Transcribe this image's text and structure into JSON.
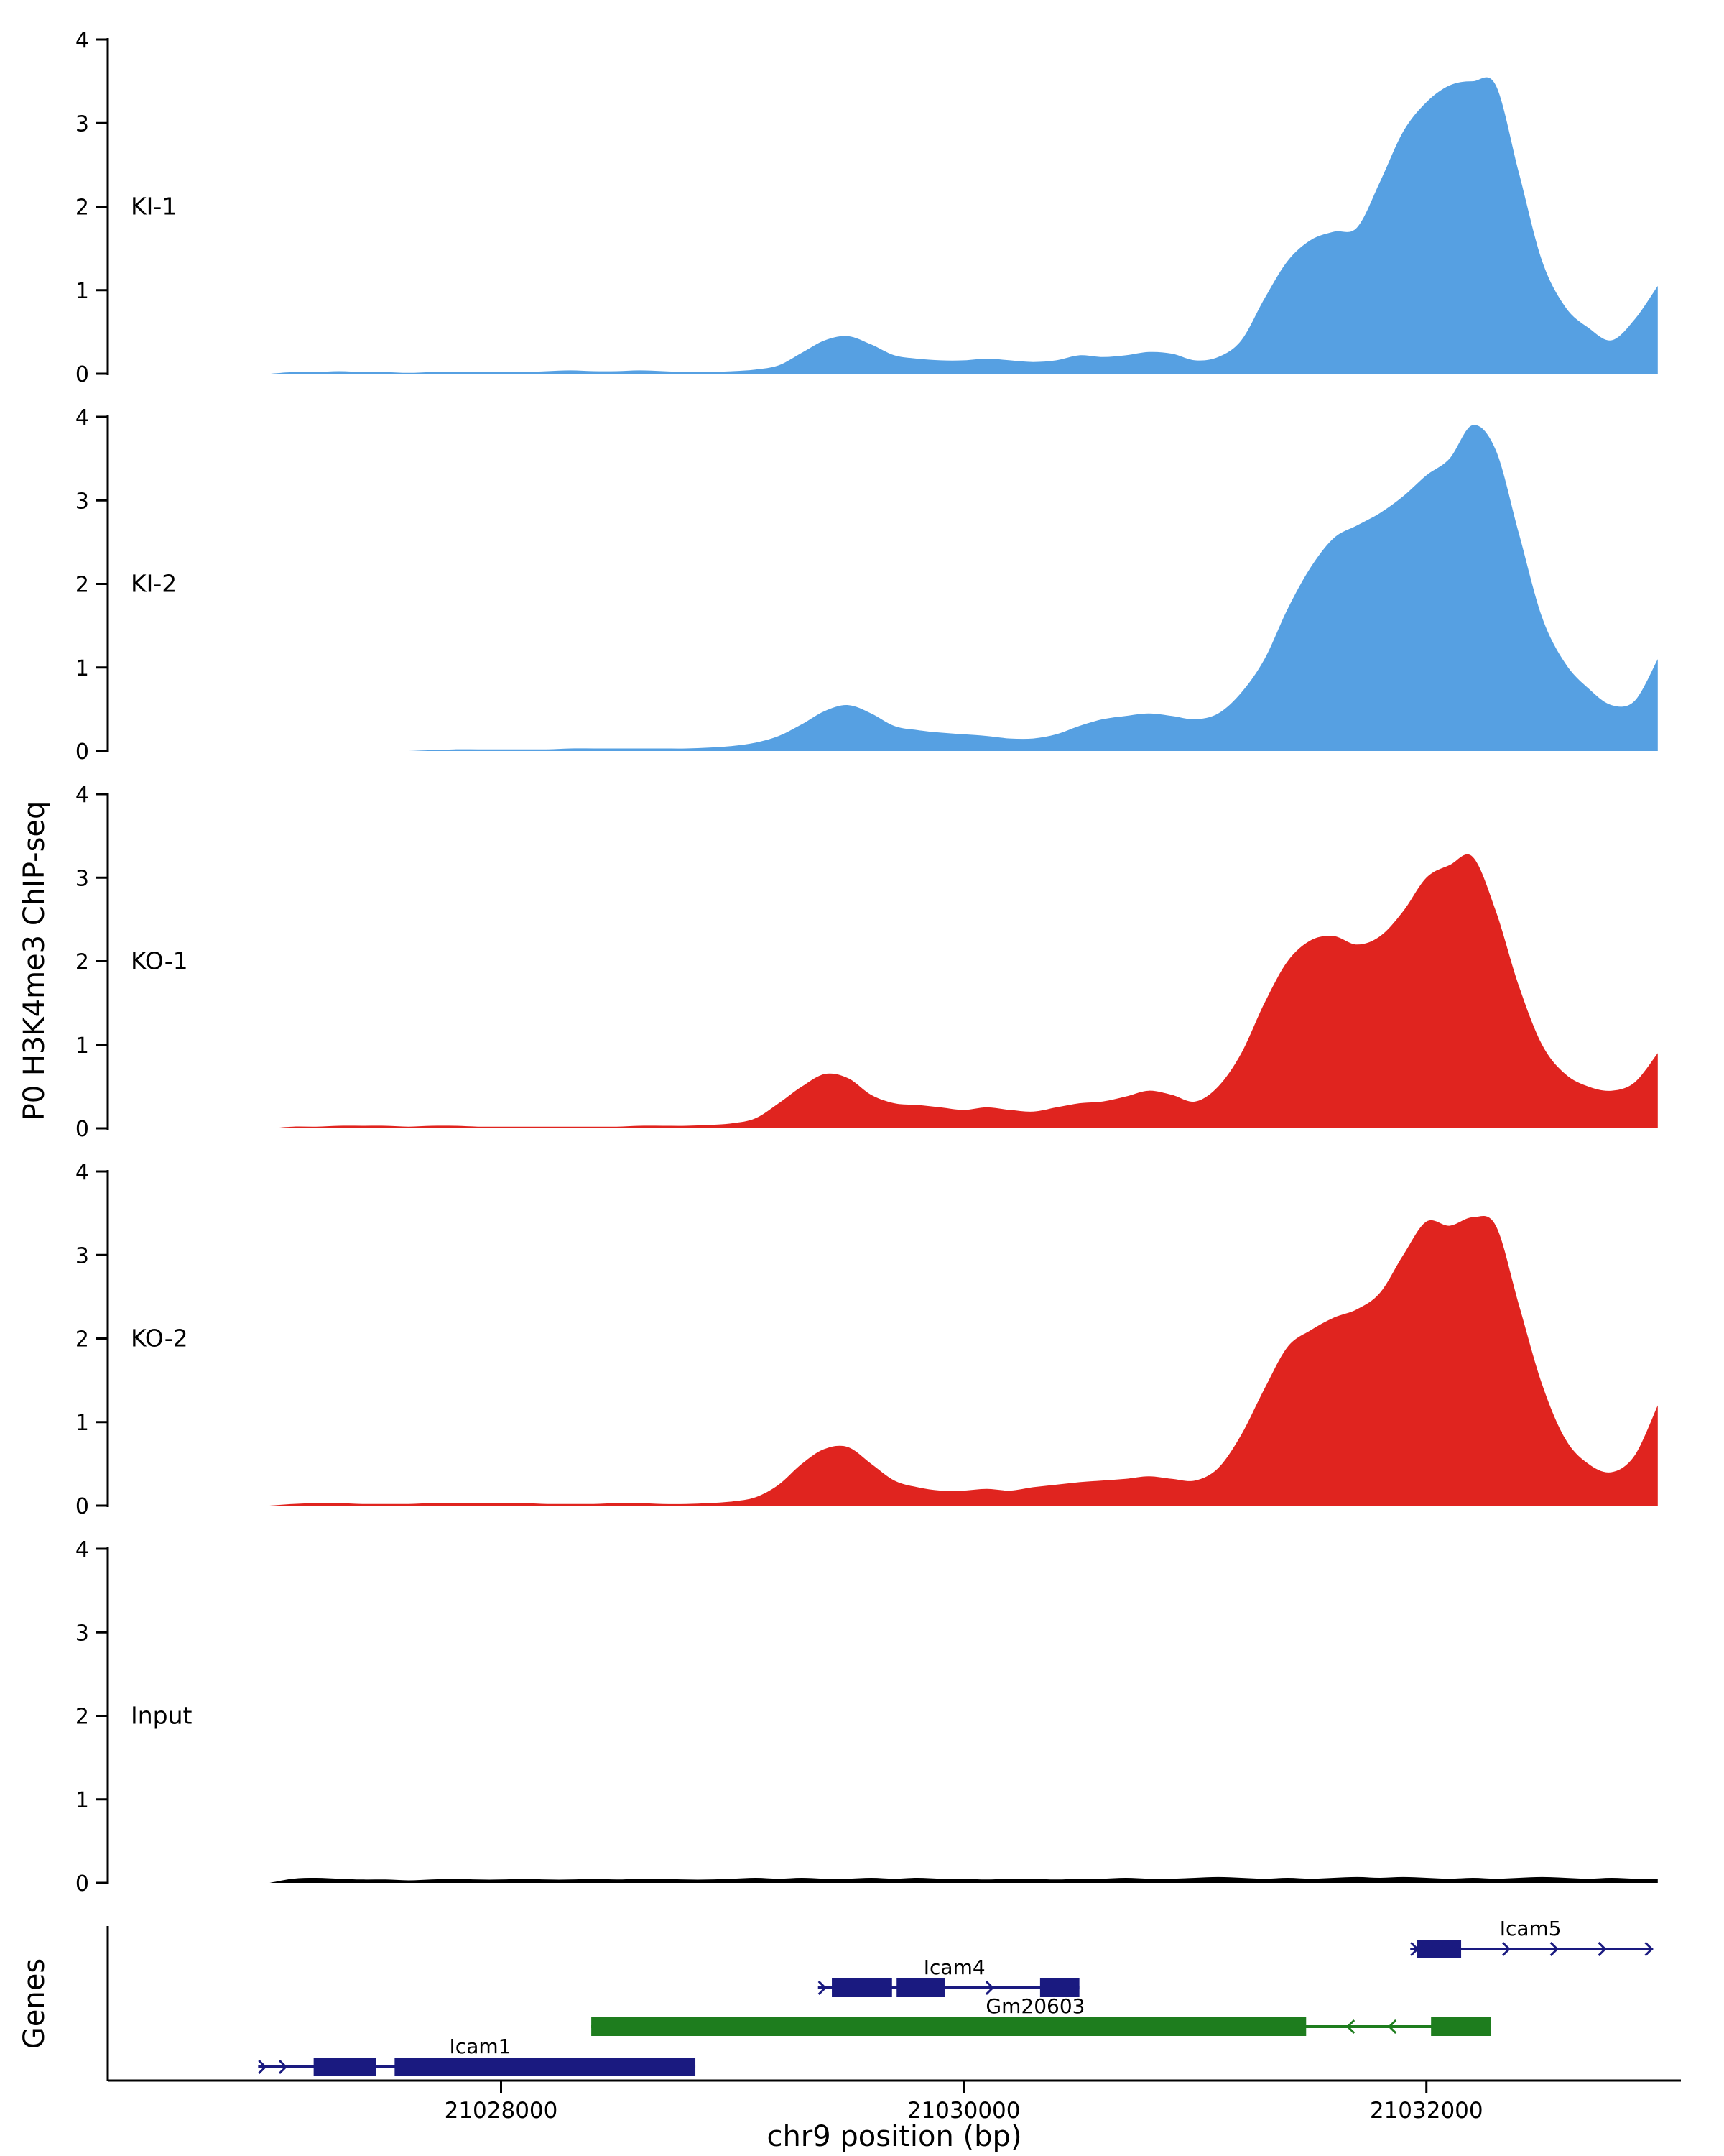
{
  "figure": {
    "yaxis_title": "P0 H3K4me3 ChIP-seq",
    "genes_axis_title": "Genes",
    "xaxis_title": "chr9 position (bp)"
  },
  "chart_data": {
    "type": "area",
    "title": "",
    "xlabel": "chr9 position (bp)",
    "ylabel": "P0 H3K4me3 ChIP-seq",
    "x_start": 21027000,
    "x_step": 100,
    "x_domain": [
      21026300,
      21033100
    ],
    "ylim": [
      0,
      4
    ],
    "y_ticks": [
      0,
      1,
      2,
      3,
      4
    ],
    "x_ticks": [
      {
        "value": 21028000,
        "label": "21028000"
      },
      {
        "value": 21030000,
        "label": "21030000"
      },
      {
        "value": 21032000,
        "label": "21032000"
      }
    ],
    "tracks": [
      {
        "label": "KI-1",
        "color": "#56A0E2",
        "values": [
          0,
          0.02,
          0.02,
          0.03,
          0.02,
          0.02,
          0.01,
          0.02,
          0.02,
          0.02,
          0.02,
          0.02,
          0.03,
          0.04,
          0.03,
          0.03,
          0.04,
          0.03,
          0.02,
          0.02,
          0.03,
          0.05,
          0.1,
          0.25,
          0.4,
          0.45,
          0.35,
          0.22,
          0.18,
          0.16,
          0.16,
          0.18,
          0.16,
          0.14,
          0.16,
          0.22,
          0.2,
          0.22,
          0.26,
          0.24,
          0.16,
          0.2,
          0.4,
          0.9,
          1.35,
          1.6,
          1.7,
          1.75,
          2.3,
          2.9,
          3.25,
          3.45,
          3.5,
          3.45,
          2.4,
          1.35,
          0.8,
          0.55,
          0.4,
          0.65,
          1.05
        ]
      },
      {
        "label": "KI-2",
        "color": "#56A0E2",
        "values": [
          0,
          0,
          0,
          0,
          0,
          0,
          0,
          0.01,
          0.02,
          0.02,
          0.02,
          0.02,
          0.02,
          0.03,
          0.03,
          0.03,
          0.03,
          0.03,
          0.03,
          0.04,
          0.06,
          0.1,
          0.18,
          0.32,
          0.48,
          0.55,
          0.45,
          0.3,
          0.25,
          0.22,
          0.2,
          0.18,
          0.15,
          0.15,
          0.2,
          0.3,
          0.38,
          0.42,
          0.45,
          0.42,
          0.38,
          0.45,
          0.7,
          1.1,
          1.7,
          2.2,
          2.55,
          2.7,
          2.85,
          3.05,
          3.3,
          3.5,
          3.9,
          3.6,
          2.6,
          1.6,
          1.05,
          0.75,
          0.55,
          0.6,
          1.1
        ]
      },
      {
        "label": "KO-1",
        "color": "#E0241F",
        "values": [
          0,
          0.02,
          0.02,
          0.03,
          0.03,
          0.03,
          0.02,
          0.03,
          0.03,
          0.02,
          0.02,
          0.02,
          0.02,
          0.02,
          0.02,
          0.02,
          0.03,
          0.03,
          0.03,
          0.04,
          0.06,
          0.12,
          0.3,
          0.5,
          0.65,
          0.6,
          0.4,
          0.3,
          0.28,
          0.25,
          0.22,
          0.25,
          0.22,
          0.2,
          0.25,
          0.3,
          0.32,
          0.38,
          0.45,
          0.4,
          0.32,
          0.5,
          0.9,
          1.5,
          2.0,
          2.25,
          2.3,
          2.2,
          2.3,
          2.6,
          3.0,
          3.15,
          3.25,
          2.6,
          1.7,
          1.0,
          0.65,
          0.5,
          0.45,
          0.55,
          0.9
        ]
      },
      {
        "label": "KO-2",
        "color": "#E0241F",
        "values": [
          0,
          0.02,
          0.03,
          0.03,
          0.02,
          0.02,
          0.02,
          0.03,
          0.03,
          0.03,
          0.03,
          0.03,
          0.02,
          0.02,
          0.02,
          0.03,
          0.03,
          0.02,
          0.02,
          0.03,
          0.05,
          0.1,
          0.25,
          0.5,
          0.68,
          0.7,
          0.5,
          0.3,
          0.22,
          0.18,
          0.18,
          0.2,
          0.18,
          0.22,
          0.25,
          0.28,
          0.3,
          0.32,
          0.35,
          0.32,
          0.3,
          0.45,
          0.85,
          1.4,
          1.9,
          2.1,
          2.25,
          2.35,
          2.55,
          3.0,
          3.4,
          3.35,
          3.45,
          3.35,
          2.4,
          1.45,
          0.8,
          0.5,
          0.4,
          0.6,
          1.2
        ]
      },
      {
        "label": "Input",
        "color": "#000000",
        "values": [
          0,
          0.05,
          0.06,
          0.05,
          0.04,
          0.04,
          0.03,
          0.04,
          0.05,
          0.04,
          0.04,
          0.05,
          0.04,
          0.04,
          0.05,
          0.04,
          0.05,
          0.05,
          0.04,
          0.04,
          0.05,
          0.06,
          0.05,
          0.06,
          0.05,
          0.05,
          0.06,
          0.05,
          0.06,
          0.05,
          0.05,
          0.04,
          0.05,
          0.05,
          0.04,
          0.05,
          0.05,
          0.06,
          0.05,
          0.05,
          0.06,
          0.07,
          0.06,
          0.05,
          0.06,
          0.05,
          0.06,
          0.07,
          0.06,
          0.07,
          0.06,
          0.05,
          0.06,
          0.05,
          0.06,
          0.07,
          0.06,
          0.05,
          0.06,
          0.05,
          0.05
        ]
      }
    ],
    "genes": [
      {
        "name": "Icam5",
        "color": "#1A1A80",
        "strand": "+",
        "row": 0,
        "span": [
          21031930,
          21032980
        ],
        "exons": [
          [
            21031960,
            21032150
          ]
        ],
        "label_x": 21032450
      },
      {
        "name": "Icam4",
        "color": "#1A1A80",
        "strand": "+",
        "row": 1,
        "span": [
          21029370,
          21030500
        ],
        "exons": [
          [
            21029430,
            21029690
          ],
          [
            21029710,
            21029920
          ],
          [
            21030330,
            21030500
          ]
        ],
        "label_x": 21029960
      },
      {
        "name": "Gm20603",
        "color": "#1E7D1E",
        "strand": "-",
        "row": 2,
        "span": [
          21028390,
          21032280
        ],
        "exons": [
          [
            21028390,
            21031480
          ],
          [
            21032020,
            21032280
          ]
        ],
        "label_x": 21030310
      },
      {
        "name": "Icam1",
        "color": "#1A1A80",
        "strand": "+",
        "row": 3,
        "span": [
          21026950,
          21028840
        ],
        "exons": [
          [
            21027190,
            21027460
          ],
          [
            21027540,
            21028840
          ]
        ],
        "label_x": 21027910
      }
    ]
  }
}
